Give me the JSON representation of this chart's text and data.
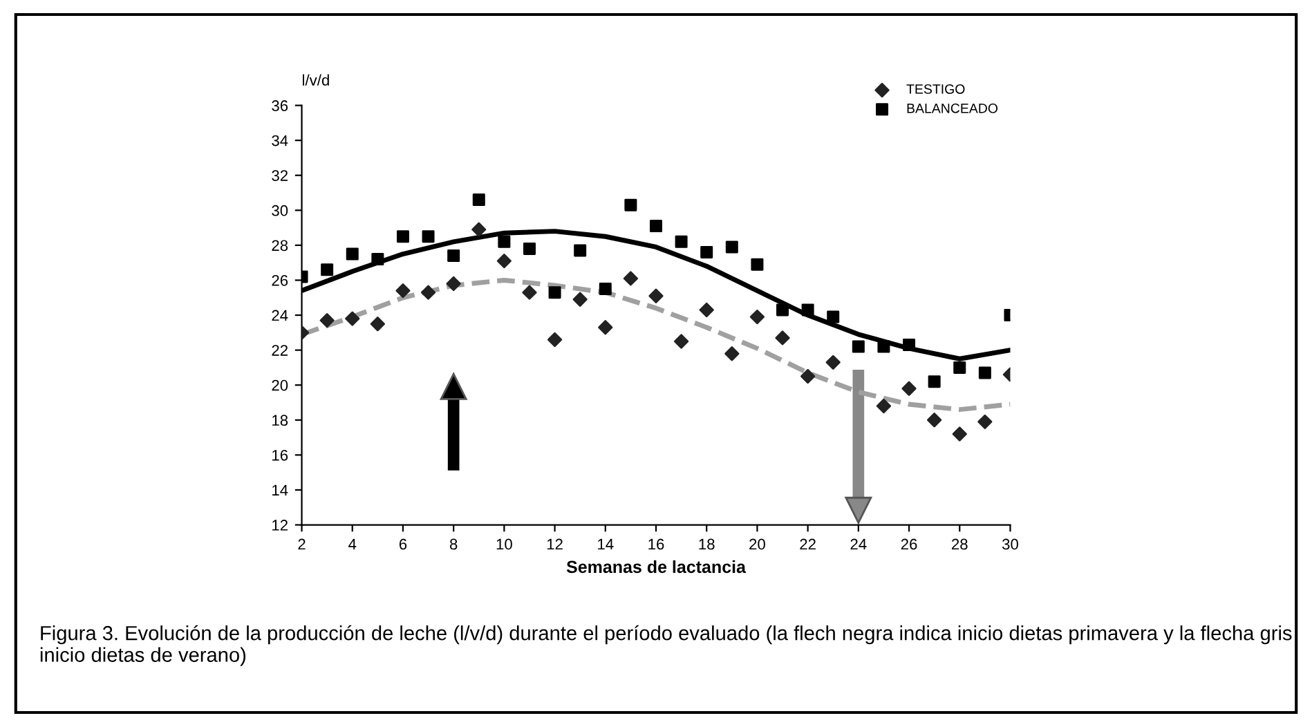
{
  "chart_data": {
    "type": "scatter",
    "xlabel": "Semanas de lactancia",
    "ylabel": "l/v/d",
    "x": [
      2,
      3,
      4,
      5,
      6,
      7,
      8,
      9,
      10,
      11,
      12,
      13,
      14,
      15,
      16,
      17,
      18,
      19,
      20,
      21,
      22,
      23,
      24,
      25,
      26,
      27,
      28,
      29,
      30
    ],
    "xlim": [
      2,
      30
    ],
    "xticks": [
      2,
      4,
      6,
      8,
      10,
      12,
      14,
      16,
      18,
      20,
      22,
      24,
      26,
      28,
      30
    ],
    "ylim": [
      12,
      36
    ],
    "yticks": [
      12,
      14,
      16,
      18,
      20,
      22,
      24,
      26,
      28,
      30,
      32,
      34,
      36
    ],
    "grid": false,
    "legend": "top right",
    "series": [
      {
        "name": "TESTIGO",
        "marker": "diamond",
        "color": "#222222",
        "values": [
          23.0,
          23.7,
          23.8,
          23.5,
          25.4,
          25.3,
          25.8,
          28.9,
          27.1,
          25.3,
          22.6,
          24.9,
          23.3,
          26.1,
          25.1,
          22.5,
          24.3,
          21.8,
          23.9,
          22.7,
          20.5,
          21.3,
          null,
          18.8,
          19.8,
          18.0,
          17.2,
          17.9,
          20.6
        ]
      },
      {
        "name": "BALANCEADO",
        "marker": "square",
        "color": "#000000",
        "values": [
          26.2,
          26.6,
          27.5,
          27.2,
          28.5,
          28.5,
          27.4,
          30.6,
          28.2,
          27.8,
          25.3,
          27.7,
          25.5,
          30.3,
          29.1,
          28.2,
          27.6,
          27.9,
          26.9,
          24.3,
          24.3,
          23.9,
          22.2,
          22.2,
          22.3,
          20.2,
          21.0,
          20.7,
          24.0
        ]
      },
      {
        "type": "line",
        "line_style": "solid",
        "color": "#000000",
        "x": [
          2,
          4,
          6,
          8,
          10,
          12,
          14,
          16,
          18,
          20,
          22,
          24,
          26,
          28,
          30
        ],
        "values": [
          25.4,
          26.5,
          27.5,
          28.2,
          28.7,
          28.8,
          28.5,
          27.9,
          26.8,
          25.4,
          24.0,
          22.9,
          22.1,
          21.5,
          22.0
        ]
      },
      {
        "type": "line",
        "line_style": "dashed",
        "color": "#a0a0a0",
        "x": [
          2,
          4,
          6,
          8,
          10,
          12,
          14,
          16,
          18,
          20,
          22,
          24,
          26,
          28,
          30
        ],
        "values": [
          22.9,
          23.9,
          25.0,
          25.7,
          26.0,
          25.7,
          25.3,
          24.4,
          23.3,
          22.1,
          20.7,
          19.6,
          18.9,
          18.6,
          18.9
        ]
      }
    ],
    "ref_lines": [
      {
        "axis": "x",
        "value": 8,
        "color": "#000000"
      },
      {
        "axis": "x",
        "value": 24,
        "color": "#888888"
      }
    ],
    "annotations": [
      "Figura 3. Evolución de la producción de leche (l/v/d) durante el período evaluado (la flech negra indica inicio dietas primavera y la flecha gris  inicio dietas de verano)"
    ]
  }
}
